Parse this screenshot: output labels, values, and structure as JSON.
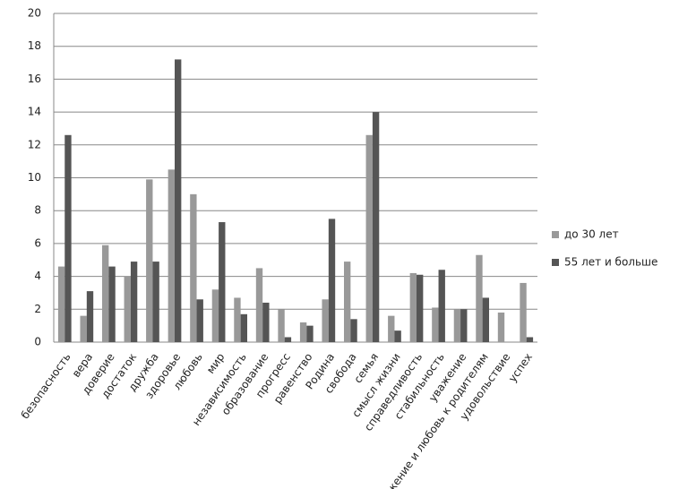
{
  "chart_data": {
    "type": "bar",
    "categories": [
      "безопасность",
      "вера",
      "доверие",
      "достаток",
      "дружба",
      "здоровье",
      "любовь",
      "мир",
      "независимость",
      "образование",
      "прогресс",
      "равенство",
      "Родина",
      "свобода",
      "семья",
      "смысл жизни",
      "справедливость",
      "стабильность",
      "уважение",
      "уважение и любовь к родителям",
      "удовольствие",
      "успех"
    ],
    "series": [
      {
        "name": "до 30 лет",
        "color": "#999999",
        "values": [
          4.6,
          1.6,
          5.9,
          4.0,
          9.9,
          10.5,
          9.0,
          3.2,
          2.7,
          4.5,
          2.0,
          1.2,
          2.6,
          4.9,
          12.6,
          1.6,
          4.2,
          2.1,
          2.0,
          5.3,
          1.8,
          3.6
        ]
      },
      {
        "name": "55 лет и больше",
        "color": "#555555",
        "values": [
          12.6,
          3.1,
          4.6,
          4.9,
          4.9,
          17.2,
          2.6,
          7.3,
          1.7,
          2.4,
          0.3,
          1.0,
          7.5,
          1.4,
          14.0,
          0.7,
          4.1,
          4.4,
          2.0,
          2.7,
          0,
          0.3
        ]
      }
    ],
    "ylim": [
      0,
      20
    ],
    "yticks": [
      0,
      2,
      4,
      6,
      8,
      10,
      12,
      14,
      16,
      18,
      20
    ],
    "grid": true,
    "legend": "right"
  }
}
